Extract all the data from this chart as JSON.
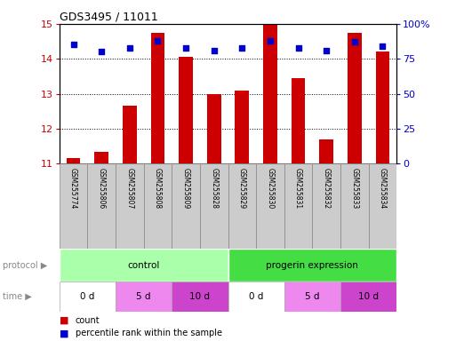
{
  "title": "GDS3495 / 11011",
  "samples": [
    "GSM255774",
    "GSM255806",
    "GSM255807",
    "GSM255808",
    "GSM255809",
    "GSM255828",
    "GSM255829",
    "GSM255830",
    "GSM255831",
    "GSM255832",
    "GSM255833",
    "GSM255834"
  ],
  "count_values": [
    11.15,
    11.35,
    12.65,
    14.75,
    14.05,
    13.0,
    13.1,
    14.97,
    13.45,
    11.7,
    14.75,
    14.2
  ],
  "percentile_values": [
    85,
    80,
    83,
    88,
    83,
    81,
    83,
    88,
    83,
    81,
    87,
    84
  ],
  "ylim_left": [
    11,
    15
  ],
  "ylim_right": [
    0,
    100
  ],
  "yticks_left": [
    11,
    12,
    13,
    14,
    15
  ],
  "yticks_right": [
    0,
    25,
    50,
    75,
    100
  ],
  "ytick_labels_right": [
    "0",
    "25",
    "50",
    "75",
    "100%"
  ],
  "bar_color": "#cc0000",
  "dot_color": "#0000cc",
  "protocol_groups": [
    {
      "label": "control",
      "start": 0,
      "end": 6,
      "color": "#aaffaa"
    },
    {
      "label": "progerin expression",
      "start": 6,
      "end": 12,
      "color": "#44dd44"
    }
  ],
  "time_groups": [
    {
      "label": "0 d",
      "start": 0,
      "end": 2,
      "color": "#ffffff"
    },
    {
      "label": "5 d",
      "start": 2,
      "end": 4,
      "color": "#ee88ee"
    },
    {
      "label": "10 d",
      "start": 4,
      "end": 6,
      "color": "#cc44cc"
    },
    {
      "label": "0 d",
      "start": 6,
      "end": 8,
      "color": "#ffffff"
    },
    {
      "label": "5 d",
      "start": 8,
      "end": 10,
      "color": "#ee88ee"
    },
    {
      "label": "10 d",
      "start": 10,
      "end": 12,
      "color": "#cc44cc"
    }
  ],
  "legend_items": [
    {
      "label": "count",
      "color": "#cc0000"
    },
    {
      "label": "percentile rank within the sample",
      "color": "#0000cc"
    }
  ],
  "background_color": "#ffffff",
  "tick_label_color_left": "#cc0000",
  "tick_label_color_right": "#0000cc",
  "label_box_color": "#cccccc",
  "label_box_edge": "#888888"
}
